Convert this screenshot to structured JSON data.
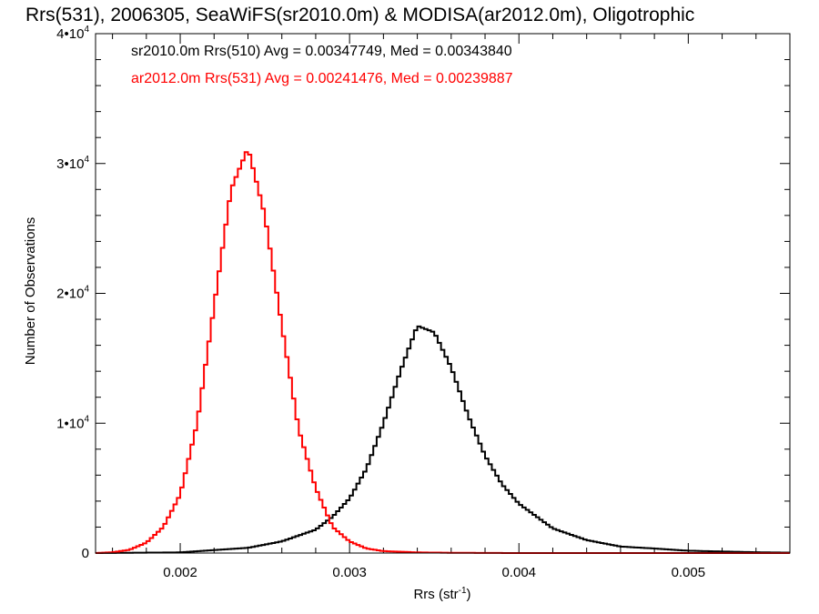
{
  "chart_data": {
    "type": "line",
    "title": "Rrs(531), 2006305, SeaWiFS(sr2010.0m) & MODISA(ar2012.0m), Oligotrophic",
    "xlabel": "Rrs (str",
    "xlabel_sup": "-1",
    "xlabel_close": ")",
    "ylabel": "Number of Observations",
    "xlim": [
      0.0015,
      0.0056
    ],
    "ylim": [
      0,
      40000
    ],
    "x_ticks": [
      {
        "value": 0.002,
        "label": "0.002"
      },
      {
        "value": 0.003,
        "label": "0.003"
      },
      {
        "value": 0.004,
        "label": "0.004"
      },
      {
        "value": 0.005,
        "label": "0.005"
      }
    ],
    "y_ticks": [
      {
        "value": 0,
        "base": "0",
        "exp": ""
      },
      {
        "value": 10000,
        "base": "1•10",
        "exp": "4"
      },
      {
        "value": 20000,
        "base": "2•10",
        "exp": "4"
      },
      {
        "value": 30000,
        "base": "3•10",
        "exp": "4"
      },
      {
        "value": 40000,
        "base": "4•10",
        "exp": "4"
      }
    ],
    "series": [
      {
        "name": "sr2010.0m Rrs(510) Avg = 0.00347749, Med = 0.00343840",
        "color": "#000000",
        "style": "histogram-step",
        "x": [
          0.0015,
          0.002,
          0.0024,
          0.0026,
          0.0028,
          0.0029,
          0.003,
          0.0031,
          0.0032,
          0.0033,
          0.0034,
          0.0035,
          0.0036,
          0.0037,
          0.0038,
          0.0039,
          0.004,
          0.0042,
          0.0044,
          0.0046,
          0.0048,
          0.005,
          0.0052,
          0.0054,
          0.0056
        ],
        "y": [
          0,
          50,
          400,
          900,
          1800,
          2800,
          4200,
          6500,
          10000,
          14000,
          17500,
          17000,
          14300,
          10600,
          7500,
          5300,
          3800,
          1900,
          1000,
          500,
          350,
          180,
          120,
          60,
          30
        ]
      },
      {
        "name": "ar2012.0m Rrs(531) Avg = 0.00241476, Med = 0.00239887",
        "color": "#ff0000",
        "style": "histogram-step",
        "x": [
          0.0015,
          0.0016,
          0.0017,
          0.0018,
          0.0019,
          0.002,
          0.0021,
          0.0022,
          0.0023,
          0.0024,
          0.0025,
          0.0026,
          0.0027,
          0.0028,
          0.0029,
          0.003,
          0.0031,
          0.0032,
          0.0034,
          0.0036,
          0.004,
          0.0056
        ],
        "y": [
          0,
          60,
          250,
          800,
          2000,
          4500,
          10000,
          19000,
          28000,
          31200,
          26000,
          17500,
          9500,
          5000,
          2000,
          900,
          350,
          150,
          50,
          20,
          0,
          0
        ]
      }
    ]
  }
}
